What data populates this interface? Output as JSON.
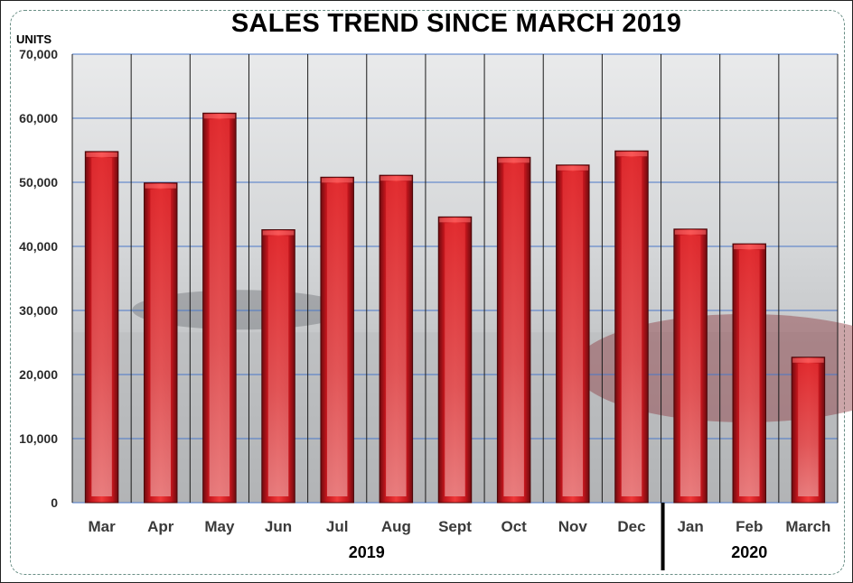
{
  "chart_data": {
    "type": "bar",
    "title": "SALES TREND SINCE MARCH 2019",
    "ylabel": "UNITS",
    "xlabel": "",
    "ylim": [
      0,
      70000
    ],
    "yticks": [
      0,
      10000,
      20000,
      30000,
      40000,
      50000,
      60000,
      70000
    ],
    "ytick_labels": [
      "0",
      "10,000",
      "20,000",
      "30,000",
      "40,000",
      "50,000",
      "60,000",
      "70,000"
    ],
    "categories": [
      "Mar",
      "Apr",
      "May",
      "Jun",
      "Jul",
      "Aug",
      "Sept",
      "Oct",
      "Nov",
      "Dec",
      "Jan",
      "Feb",
      "March"
    ],
    "values": [
      54800,
      49900,
      60800,
      42600,
      50800,
      51100,
      44600,
      53900,
      52700,
      54900,
      42700,
      40400,
      22700
    ],
    "groups": [
      {
        "label": "2019",
        "start": 0,
        "end": 9
      },
      {
        "label": "2020",
        "start": 10,
        "end": 12
      }
    ],
    "grid": true,
    "colors": {
      "bar": "#d42027",
      "bar_dark": "#6e0b0f",
      "bar_light": "#ff8a8a",
      "gridline": "#4a78c8",
      "background_photo": "#c9cbcd"
    }
  }
}
